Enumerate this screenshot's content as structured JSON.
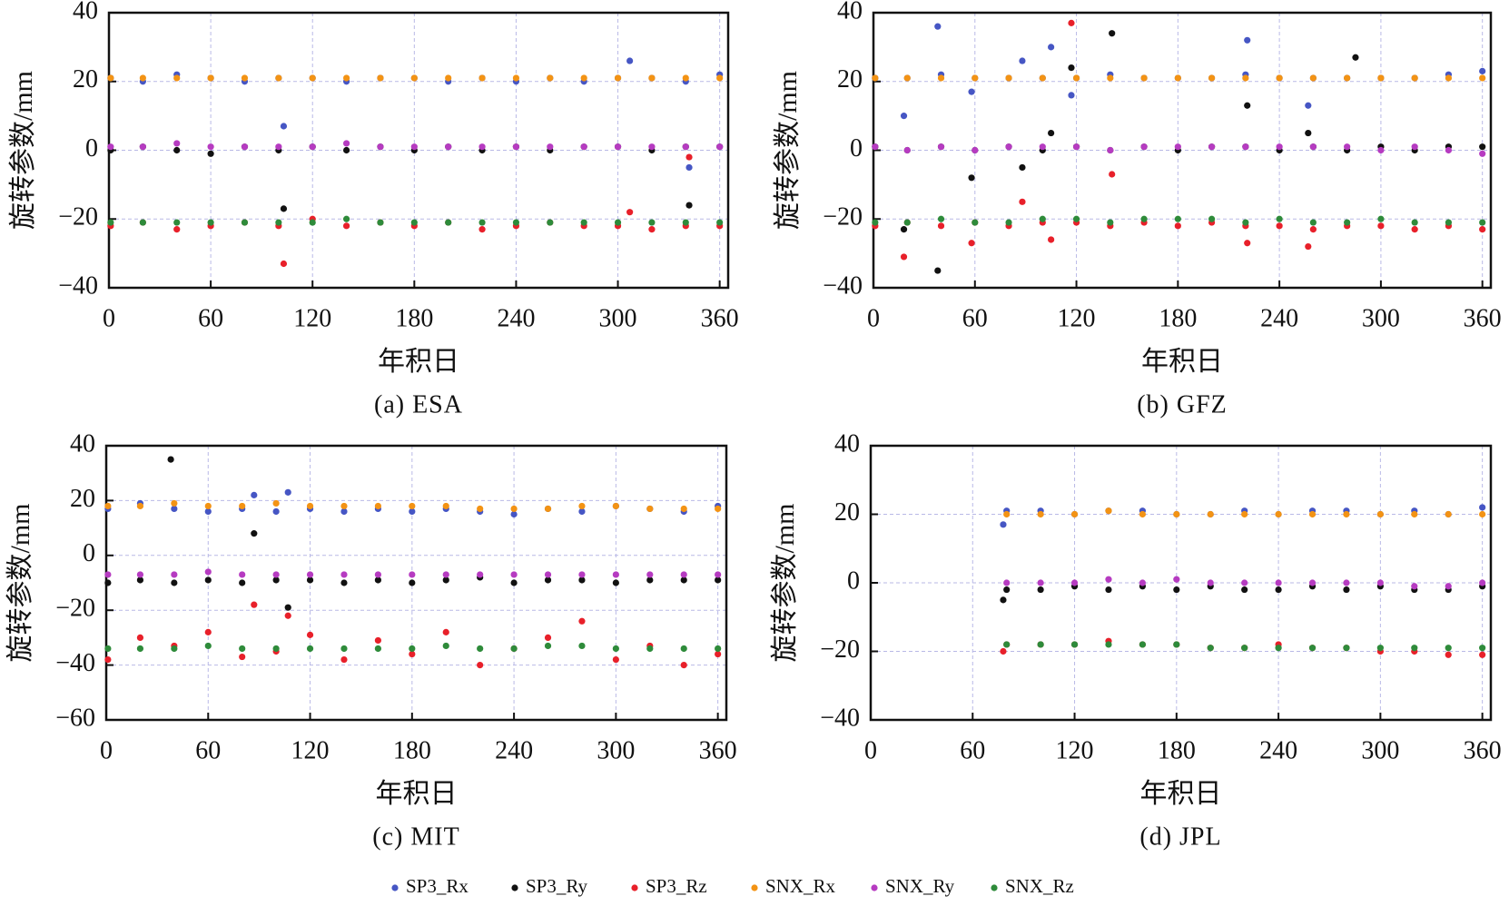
{
  "legend": [
    {
      "name": "SP3_Rx",
      "color": "#4656c4"
    },
    {
      "name": "SP3_Ry",
      "color": "#111111"
    },
    {
      "name": "SP3_Rz",
      "color": "#e8202a"
    },
    {
      "name": "SNX_Rx",
      "color": "#f39314"
    },
    {
      "name": "SNX_Ry",
      "color": "#b63bc1"
    },
    {
      "name": "SNX_Rz",
      "color": "#2e8b3a"
    }
  ],
  "chart_data": [
    {
      "type": "scatter",
      "title": "(a) ESA",
      "xlabel": "年积日",
      "ylabel": "旋转参数/mm",
      "xlim": [
        0,
        365
      ],
      "xticks": [
        0,
        60,
        120,
        180,
        240,
        300,
        360
      ],
      "ylim": [
        -40,
        40
      ],
      "yticks": [
        {
          "value": -40,
          "label": "−40"
        },
        {
          "value": -20,
          "label": "−20"
        },
        0,
        20,
        40
      ],
      "grid": true,
      "x": [
        1,
        20,
        40,
        60,
        80,
        100,
        103,
        120,
        140,
        160,
        180,
        200,
        220,
        240,
        260,
        280,
        300,
        307,
        320,
        340,
        342,
        360
      ],
      "series": [
        {
          "values": [
            21,
            20,
            22,
            21,
            20,
            21,
            7,
            21,
            20,
            21,
            21,
            20,
            21,
            20,
            21,
            20,
            21,
            26,
            21,
            20,
            -5,
            22
          ]
        },
        {
          "values": [
            0,
            1,
            0,
            -1,
            1,
            0,
            -17,
            1,
            0,
            1,
            0,
            1,
            0,
            1,
            0,
            1,
            1,
            null,
            0,
            1,
            -16,
            1
          ]
        },
        {
          "values": [
            -22,
            -21,
            -23,
            -22,
            -21,
            -22,
            -33,
            -20,
            -22,
            -21,
            -22,
            -21,
            -23,
            -22,
            -21,
            -22,
            -22,
            -18,
            -23,
            -22,
            -2,
            -22
          ]
        },
        {
          "values": [
            21,
            21,
            21,
            21,
            21,
            21,
            null,
            21,
            21,
            21,
            21,
            21,
            21,
            21,
            21,
            21,
            21,
            null,
            21,
            21,
            null,
            21
          ]
        },
        {
          "values": [
            1,
            1,
            2,
            1,
            1,
            1,
            null,
            1,
            2,
            1,
            1,
            1,
            1,
            1,
            1,
            1,
            1,
            null,
            1,
            1,
            null,
            1
          ]
        },
        {
          "values": [
            -21,
            -21,
            -21,
            -21,
            -21,
            -21,
            null,
            -21,
            -20,
            -21,
            -21,
            -21,
            -21,
            -21,
            -21,
            -21,
            -21,
            null,
            -21,
            -21,
            null,
            -21
          ]
        }
      ]
    },
    {
      "type": "scatter",
      "title": "(b) GFZ",
      "xlabel": "年积日",
      "ylabel": "旋转参数/mm",
      "xlim": [
        0,
        365
      ],
      "xticks": [
        0,
        60,
        120,
        180,
        240,
        300,
        360
      ],
      "ylim": [
        -40,
        40
      ],
      "yticks": [
        {
          "value": -40,
          "label": "−40"
        },
        {
          "value": -20,
          "label": "−20"
        },
        0,
        20,
        40
      ],
      "grid": true,
      "x": [
        1,
        18,
        20,
        38,
        40,
        58,
        60,
        80,
        88,
        100,
        105,
        117,
        120,
        140,
        141,
        160,
        180,
        200,
        220,
        221,
        240,
        257,
        260,
        280,
        285,
        300,
        320,
        340,
        360
      ],
      "series": [
        {
          "values": [
            21,
            10,
            21,
            36,
            22,
            17,
            21,
            21,
            26,
            21,
            30,
            16,
            21,
            22,
            null,
            21,
            21,
            21,
            22,
            32,
            21,
            13,
            21,
            21,
            null,
            21,
            21,
            22,
            23
          ]
        },
        {
          "values": [
            1,
            -23,
            0,
            -35,
            1,
            -8,
            0,
            1,
            -5,
            0,
            5,
            24,
            1,
            0,
            34,
            1,
            0,
            1,
            1,
            13,
            0,
            5,
            1,
            0,
            27,
            1,
            0,
            1,
            1
          ]
        },
        {
          "values": [
            -22,
            -31,
            -21,
            null,
            -22,
            -27,
            -21,
            -22,
            -15,
            -21,
            -26,
            37,
            -21,
            -22,
            -7,
            -21,
            -22,
            -21,
            -22,
            -27,
            -22,
            -28,
            -23,
            -22,
            null,
            -22,
            -23,
            -22,
            -23
          ]
        },
        {
          "values": [
            21,
            null,
            21,
            null,
            21,
            null,
            21,
            21,
            null,
            21,
            null,
            null,
            21,
            21,
            null,
            21,
            21,
            21,
            21,
            null,
            21,
            null,
            21,
            21,
            null,
            21,
            21,
            21,
            21
          ]
        },
        {
          "values": [
            1,
            null,
            0,
            null,
            1,
            null,
            0,
            1,
            null,
            1,
            null,
            null,
            1,
            0,
            null,
            1,
            1,
            1,
            1,
            null,
            1,
            null,
            1,
            1,
            null,
            0,
            1,
            0,
            -1
          ]
        },
        {
          "values": [
            -21,
            null,
            -21,
            null,
            -20,
            null,
            -21,
            -21,
            null,
            -20,
            null,
            null,
            -20,
            -21,
            null,
            -20,
            -20,
            -20,
            -21,
            null,
            -20,
            null,
            -21,
            -21,
            null,
            -20,
            -21,
            -21,
            -21
          ]
        }
      ]
    },
    {
      "type": "scatter",
      "title": "(c) MIT",
      "xlabel": "年积日",
      "ylabel": "旋转参数/mm",
      "xlim": [
        0,
        365
      ],
      "xticks": [
        0,
        60,
        120,
        180,
        240,
        300,
        360
      ],
      "ylim": [
        -60,
        40
      ],
      "yticks": [
        {
          "value": -60,
          "label": "−60"
        },
        {
          "value": -40,
          "label": "−40"
        },
        {
          "value": -20,
          "label": "−20"
        },
        0,
        20,
        40
      ],
      "grid": true,
      "x": [
        1,
        20,
        38,
        40,
        60,
        80,
        87,
        100,
        107,
        120,
        140,
        160,
        180,
        200,
        220,
        240,
        260,
        280,
        300,
        320,
        340,
        360
      ],
      "series": [
        {
          "values": [
            17,
            19,
            null,
            17,
            16,
            17,
            22,
            16,
            23,
            17,
            16,
            17,
            16,
            17,
            16,
            15,
            17,
            16,
            18,
            17,
            16,
            18
          ]
        },
        {
          "values": [
            -10,
            -9,
            35,
            -10,
            -9,
            -10,
            8,
            -9,
            -19,
            -9,
            -10,
            -9,
            -10,
            -9,
            -8,
            -10,
            -9,
            -9,
            -10,
            -9,
            -9,
            -9
          ]
        },
        {
          "values": [
            -38,
            -30,
            null,
            -33,
            -28,
            -37,
            -18,
            -35,
            -22,
            -29,
            -38,
            -31,
            -36,
            -28,
            -40,
            -34,
            -30,
            -24,
            -38,
            -33,
            -40,
            -36
          ]
        },
        {
          "values": [
            18,
            18,
            null,
            19,
            18,
            18,
            null,
            19,
            null,
            18,
            18,
            18,
            18,
            18,
            17,
            17,
            17,
            18,
            18,
            17,
            17,
            17
          ]
        },
        {
          "values": [
            -7,
            -7,
            null,
            -7,
            -6,
            -7,
            null,
            -7,
            null,
            -7,
            -7,
            -7,
            -7,
            -7,
            -7,
            -7,
            -7,
            -7,
            -7,
            -7,
            -7,
            -7
          ]
        },
        {
          "values": [
            -34,
            -34,
            null,
            -34,
            -33,
            -34,
            null,
            -34,
            null,
            -34,
            -34,
            -34,
            -34,
            -33,
            -34,
            -34,
            -33,
            -33,
            -34,
            -34,
            -34,
            -34
          ]
        }
      ]
    },
    {
      "type": "scatter",
      "title": "(d) JPL",
      "xlabel": "年积日",
      "ylabel": "旋转参数/mm",
      "xlim": [
        0,
        365
      ],
      "xticks": [
        0,
        60,
        120,
        180,
        240,
        300,
        360
      ],
      "ylim": [
        -40,
        40
      ],
      "yticks": [
        {
          "value": -40,
          "label": "−40"
        },
        {
          "value": -20,
          "label": "−20"
        },
        0,
        20,
        40
      ],
      "grid": true,
      "x": [
        78,
        80,
        100,
        120,
        140,
        160,
        180,
        200,
        220,
        240,
        260,
        280,
        300,
        320,
        340,
        360
      ],
      "series": [
        {
          "values": [
            17,
            21,
            21,
            20,
            21,
            21,
            20,
            20,
            21,
            20,
            21,
            21,
            20,
            21,
            20,
            22
          ]
        },
        {
          "values": [
            -5,
            -2,
            -2,
            -1,
            -2,
            -1,
            -2,
            -1,
            -2,
            -2,
            -1,
            -2,
            -1,
            -2,
            -2,
            -1
          ]
        },
        {
          "values": [
            -20,
            -18,
            -18,
            -18,
            -17,
            -18,
            -18,
            -19,
            -19,
            -18,
            -19,
            -19,
            -20,
            -20,
            -21,
            -21
          ]
        },
        {
          "values": [
            null,
            20,
            20,
            20,
            21,
            20,
            20,
            20,
            20,
            20,
            20,
            20,
            20,
            20,
            20,
            20
          ]
        },
        {
          "values": [
            null,
            0,
            0,
            0,
            1,
            0,
            1,
            0,
            0,
            0,
            0,
            0,
            0,
            -1,
            -1,
            0
          ]
        },
        {
          "values": [
            null,
            -18,
            -18,
            -18,
            -18,
            -18,
            -18,
            -19,
            -19,
            -19,
            -19,
            -19,
            -19,
            -19,
            -19,
            -19
          ]
        }
      ]
    }
  ]
}
